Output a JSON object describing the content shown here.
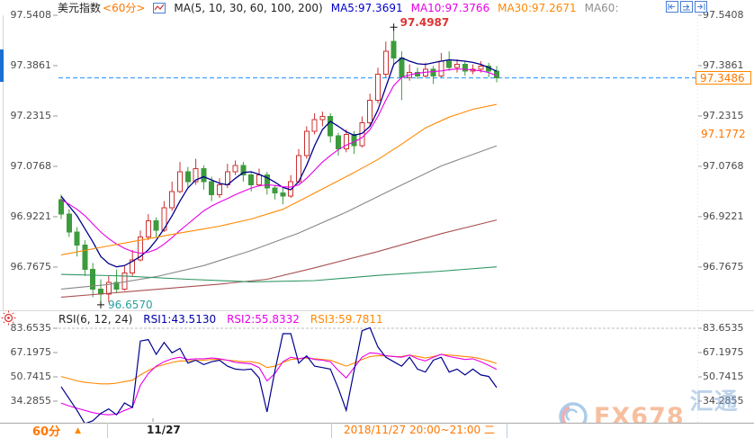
{
  "header": {
    "title": "美元指数",
    "period": "<60分>",
    "ma_group": "MA(5, 10, 30, 60, 100, 200)",
    "ma5": "MA5:97.3691",
    "ma10": "MA10:97.3766",
    "ma30": "MA30:97.2671",
    "ma60": "MA60:"
  },
  "icons": {
    "header_chart": "line-chart-icon",
    "controls": [
      "pan-left-icon",
      "pan-right-icon",
      "jump-latest-icon"
    ],
    "rsi_settings": "sun-icon"
  },
  "price_axis": {
    "ticks": [
      "97.5408",
      "97.3861",
      "97.2315",
      "97.0768",
      "96.9221",
      "96.7675"
    ]
  },
  "rsi_axis": {
    "ticks": [
      "83.6535",
      "67.1975",
      "50.7415",
      "34.2855"
    ]
  },
  "price_line": {
    "value": "97.3486",
    "color": "#1e90ff"
  },
  "ref_label": {
    "value": "97.1772"
  },
  "annotations": {
    "high": "97.4987",
    "low": "96.6570"
  },
  "rsi_header": {
    "label": "RSI(6, 12, 24)",
    "rsi1": "RSI1:43.5130",
    "rsi2": "RSI2:55.8332",
    "rsi3": "RSI3:59.7811"
  },
  "footer": {
    "period": "60分",
    "period_arrow": "▲",
    "day_label": "11/27",
    "range_label": "2018/11/27 20:00~21:00 二"
  },
  "watermark": {
    "text1": "FX678",
    "text2": "汇通网"
  },
  "colors": {
    "up": "#cc3232",
    "down": "#3c9b3c",
    "price_line": "#1e90ff",
    "ma5": "#00008c",
    "ma10": "#e800e8",
    "ma30": "#ff8800",
    "ma60": "#888888",
    "ma100": "#a85050",
    "ma200": "#2e9662",
    "accent_orange": "#ff7700",
    "high_label": "#e03030",
    "low_label": "#2aa0a0"
  },
  "chart_data": [
    {
      "type": "candlestick",
      "title": "美元指数 60分 K线 + MA(5,10,30,60,100,200)",
      "ylim": [
        96.632,
        97.56
      ],
      "yticks": [
        97.5408,
        97.3861,
        97.2315,
        97.0768,
        96.9221,
        96.7675
      ],
      "current_price": 97.3486,
      "reference_price": 97.1772,
      "high_marker": {
        "index": 42,
        "price": 97.4987
      },
      "low_marker": {
        "index": 5,
        "price": 96.657
      },
      "candles": [
        [
          96.975,
          96.99,
          96.915,
          96.93
        ],
        [
          96.93,
          96.945,
          96.86,
          96.875
        ],
        [
          96.875,
          96.89,
          96.8,
          96.835
        ],
        [
          96.835,
          96.85,
          96.74,
          96.76
        ],
        [
          96.76,
          96.78,
          96.675,
          96.7
        ],
        [
          96.7,
          96.73,
          96.657,
          96.685
        ],
        [
          96.685,
          96.74,
          96.66,
          96.72
        ],
        [
          96.72,
          96.76,
          96.69,
          96.7
        ],
        [
          96.7,
          96.77,
          96.695,
          96.75
        ],
        [
          96.75,
          96.82,
          96.74,
          96.79
        ],
        [
          96.79,
          96.88,
          96.785,
          96.86
        ],
        [
          96.86,
          96.93,
          96.85,
          96.91
        ],
        [
          96.91,
          96.92,
          96.86,
          96.88
        ],
        [
          96.88,
          96.97,
          96.875,
          96.95
        ],
        [
          96.95,
          97.03,
          96.94,
          97.0
        ],
        [
          97.0,
          97.09,
          96.995,
          97.06
        ],
        [
          97.06,
          97.075,
          97.01,
          97.03
        ],
        [
          97.03,
          97.1,
          97.02,
          97.07
        ],
        [
          97.07,
          97.08,
          97.005,
          97.03
        ],
        [
          97.03,
          97.045,
          96.97,
          96.99
        ],
        [
          96.99,
          97.04,
          96.98,
          97.02
        ],
        [
          97.02,
          97.085,
          97.01,
          97.06
        ],
        [
          97.06,
          97.095,
          97.05,
          97.08
        ],
        [
          97.08,
          97.09,
          97.03,
          97.05
        ],
        [
          97.05,
          97.06,
          97.0,
          97.02
        ],
        [
          97.02,
          97.07,
          97.015,
          97.05
        ],
        [
          97.05,
          97.06,
          96.99,
          97.01
        ],
        [
          97.01,
          97.02,
          96.975,
          96.995
        ],
        [
          96.995,
          97.01,
          96.96,
          96.985
        ],
        [
          96.985,
          97.05,
          96.98,
          97.03
        ],
        [
          97.03,
          97.13,
          97.025,
          97.11
        ],
        [
          97.11,
          97.2,
          97.1,
          97.185
        ],
        [
          97.185,
          97.24,
          97.175,
          97.22
        ],
        [
          97.22,
          97.245,
          97.2,
          97.23
        ],
        [
          97.23,
          97.24,
          97.15,
          97.17
        ],
        [
          97.17,
          97.18,
          97.11,
          97.13
        ],
        [
          97.13,
          97.19,
          97.12,
          97.175
        ],
        [
          97.175,
          97.185,
          97.115,
          97.14
        ],
        [
          97.14,
          97.23,
          97.135,
          97.21
        ],
        [
          97.21,
          97.3,
          97.2,
          97.28
        ],
        [
          97.28,
          97.38,
          97.27,
          97.36
        ],
        [
          97.36,
          97.46,
          97.35,
          97.43
        ],
        [
          97.46,
          97.4987,
          97.39,
          97.41
        ],
        [
          97.41,
          97.43,
          97.28,
          97.35
        ],
        [
          97.35,
          97.39,
          97.34,
          97.365
        ],
        [
          97.365,
          97.38,
          97.345,
          97.355
        ],
        [
          97.355,
          97.395,
          97.35,
          97.375
        ],
        [
          97.375,
          97.385,
          97.33,
          97.355
        ],
        [
          97.355,
          97.425,
          97.35,
          97.4
        ],
        [
          97.4,
          97.43,
          97.37,
          97.38
        ],
        [
          97.38,
          97.405,
          97.365,
          97.39
        ],
        [
          97.39,
          97.4,
          97.355,
          97.37
        ],
        [
          97.37,
          97.39,
          97.36,
          97.375
        ],
        [
          97.375,
          97.4,
          97.365,
          97.385
        ],
        [
          97.385,
          97.395,
          97.35,
          97.37
        ],
        [
          97.37,
          97.385,
          97.335,
          97.3486
        ]
      ],
      "overlays": [
        {
          "name": "MA5",
          "color": "#00008c",
          "values": [
            96.985,
            96.955,
            96.925,
            96.885,
            96.845,
            96.8,
            96.778,
            96.768,
            96.772,
            96.785,
            96.8,
            96.82,
            96.85,
            96.885,
            96.925,
            96.97,
            97.01,
            97.035,
            97.045,
            97.035,
            97.025,
            97.02,
            97.04,
            97.058,
            97.06,
            97.052,
            97.042,
            97.028,
            97.012,
            97.005,
            97.03,
            97.08,
            97.14,
            97.19,
            97.215,
            97.2,
            97.183,
            97.172,
            97.178,
            97.2,
            97.25,
            97.32,
            97.39,
            97.41,
            97.4,
            97.392,
            97.39,
            97.395,
            97.4,
            97.404,
            97.402,
            97.4,
            97.396,
            97.39,
            97.38,
            97.369
          ]
        },
        {
          "name": "MA10",
          "color": "#e800e8",
          "values": [
            96.975,
            96.96,
            96.945,
            96.925,
            96.9,
            96.875,
            96.855,
            96.838,
            96.825,
            96.815,
            96.81,
            96.813,
            96.822,
            96.838,
            96.858,
            96.88,
            96.9,
            96.92,
            96.94,
            96.955,
            96.967,
            96.978,
            96.99,
            97.0,
            97.01,
            97.017,
            97.02,
            97.018,
            97.014,
            97.013,
            97.02,
            97.04,
            97.065,
            97.09,
            97.11,
            97.128,
            97.142,
            97.152,
            97.165,
            97.19,
            97.23,
            97.28,
            97.325,
            97.35,
            97.358,
            97.363,
            97.366,
            97.368,
            97.37,
            97.374,
            97.376,
            97.375,
            97.373,
            97.37,
            97.365,
            97.355
          ]
        },
        {
          "name": "MA30",
          "color": "#ff8800",
          "points": [
            [
              0,
              96.805
            ],
            [
              5,
              96.828
            ],
            [
              10,
              96.85
            ],
            [
              15,
              96.872
            ],
            [
              20,
              96.893
            ],
            [
              24,
              96.915
            ],
            [
              28,
              96.945
            ],
            [
              31,
              96.982
            ],
            [
              34,
              97.02
            ],
            [
              37,
              97.058
            ],
            [
              40,
              97.098
            ],
            [
              43,
              97.145
            ],
            [
              46,
              97.195
            ],
            [
              49,
              97.228
            ],
            [
              52,
              97.252
            ],
            [
              55,
              97.267
            ]
          ]
        },
        {
          "name": "MA60",
          "color": "#888888",
          "points": [
            [
              0,
              96.7
            ],
            [
              6,
              96.714
            ],
            [
              12,
              96.738
            ],
            [
              18,
              96.772
            ],
            [
              24,
              96.818
            ],
            [
              30,
              96.872
            ],
            [
              36,
              96.936
            ],
            [
              42,
              97.008
            ],
            [
              48,
              97.078
            ],
            [
              55,
              97.14
            ]
          ]
        },
        {
          "name": "MA100",
          "color": "#a85050",
          "points": [
            [
              0,
              96.675
            ],
            [
              10,
              96.695
            ],
            [
              20,
              96.715
            ],
            [
              26,
              96.73
            ],
            [
              32,
              96.765
            ],
            [
              40,
              96.815
            ],
            [
              48,
              96.87
            ],
            [
              55,
              96.912
            ]
          ]
        },
        {
          "name": "MA200",
          "color": "#2e9662",
          "points": [
            [
              0,
              96.745
            ],
            [
              8,
              96.74
            ],
            [
              16,
              96.73
            ],
            [
              24,
              96.722
            ],
            [
              32,
              96.726
            ],
            [
              40,
              96.742
            ],
            [
              48,
              96.755
            ],
            [
              55,
              96.768
            ]
          ]
        }
      ]
    },
    {
      "type": "line",
      "title": "RSI(6,12,24)",
      "ylim": [
        19,
        92
      ],
      "yticks": [
        83.6535,
        67.1975,
        50.7415,
        34.2855
      ],
      "series": [
        {
          "name": "RSI1",
          "color": "#000090",
          "values": [
            44,
            36,
            28,
            19,
            21,
            26,
            29,
            25,
            33,
            30,
            75,
            76,
            66,
            74,
            67,
            70,
            60,
            62,
            59,
            61,
            62,
            58,
            56,
            55.5,
            56,
            50,
            27,
            55,
            80,
            80,
            60,
            65,
            58,
            57,
            56,
            43,
            28,
            55,
            82,
            84,
            71,
            64,
            61,
            58,
            64,
            56,
            54,
            62,
            64,
            54,
            56,
            52,
            56,
            52,
            51,
            43.5
          ]
        },
        {
          "name": "RSI2",
          "color": "#e800e8",
          "values": [
            33,
            31,
            29.5,
            28,
            26.5,
            25.5,
            25,
            25.5,
            28,
            30,
            45,
            53,
            58,
            61,
            63,
            64,
            62.5,
            63,
            63,
            63.5,
            63,
            62,
            60.5,
            60,
            59.5,
            57,
            48,
            53,
            61,
            64,
            63,
            64,
            62.5,
            62,
            61,
            55,
            50,
            57,
            64,
            67,
            66.5,
            65,
            64.5,
            64,
            65.5,
            63,
            61.5,
            64,
            66,
            64.5,
            63.5,
            62.5,
            63,
            61,
            58.5,
            55.8
          ]
        },
        {
          "name": "RSI3",
          "color": "#ff8800",
          "values": [
            51,
            49.5,
            48,
            47,
            46.5,
            46,
            46,
            46.5,
            47.5,
            48.5,
            52,
            55,
            57.5,
            59,
            60.5,
            61.5,
            61.5,
            62,
            62,
            62.5,
            62.5,
            62,
            61.5,
            61,
            61,
            60,
            57,
            58,
            60.5,
            62.5,
            63,
            63.5,
            63,
            62.5,
            62,
            60,
            58,
            60,
            62.5,
            64.5,
            65,
            65,
            64.5,
            64.5,
            65.5,
            64.5,
            63.5,
            64.5,
            66,
            65.5,
            65,
            64.5,
            64,
            63,
            61.5,
            59.8
          ]
        }
      ]
    }
  ]
}
